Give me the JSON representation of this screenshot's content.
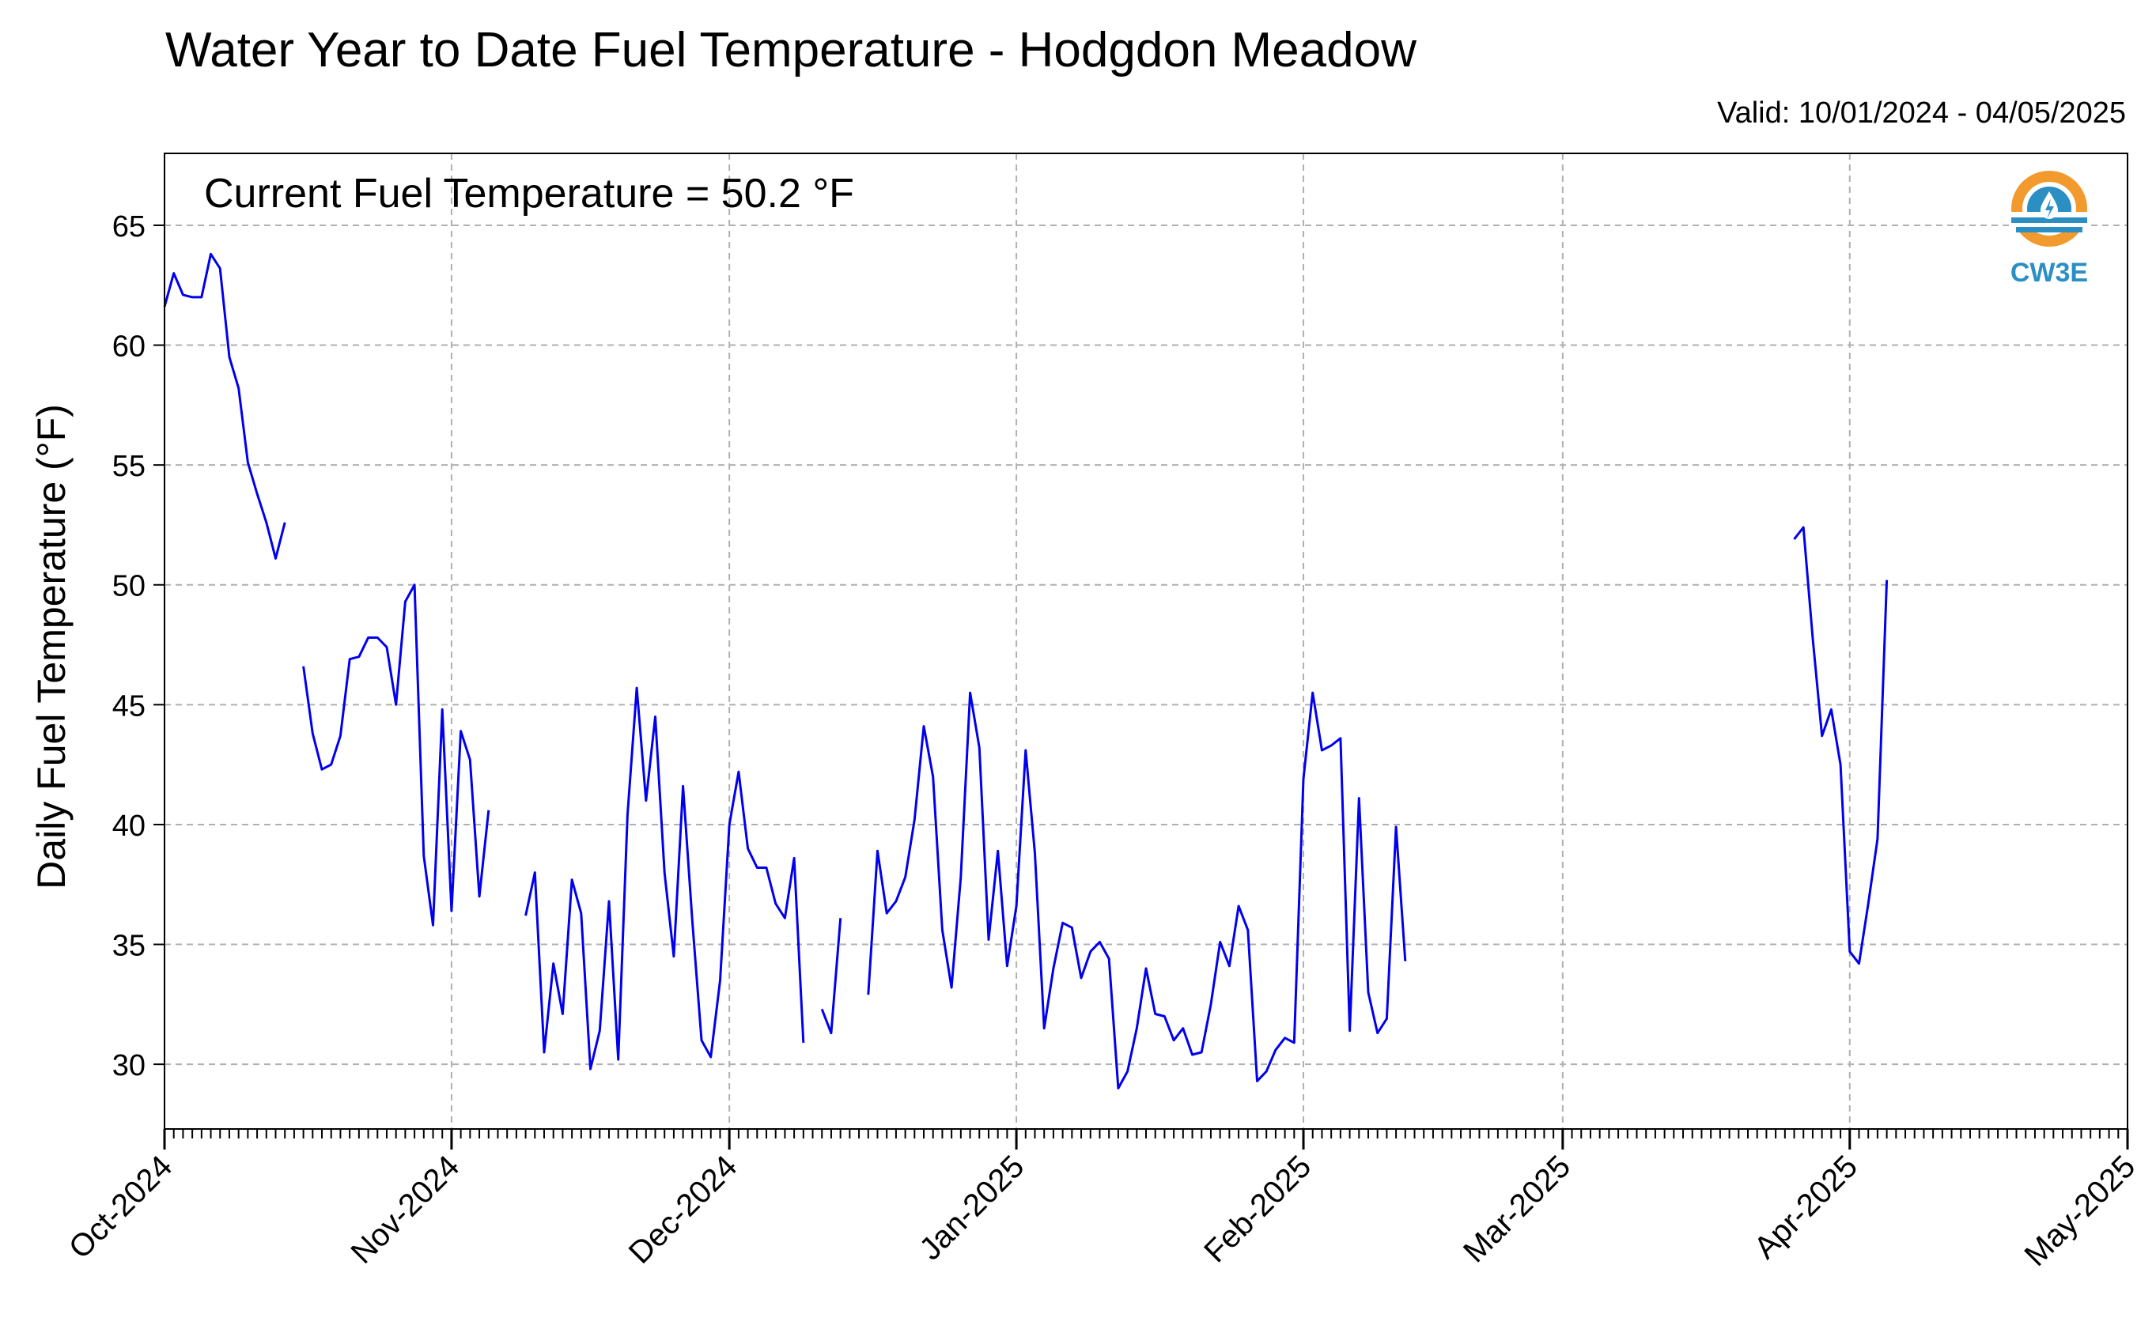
{
  "title": "Water Year to Date Fuel Temperature - Hodgdon Meadow",
  "valid_label": "Valid: 10/01/2024 - 04/05/2025",
  "logo_text": "CW3E",
  "colors": {
    "line": "#0000ee",
    "grid": "#b0b0b0",
    "axes": "#000000",
    "logo_orange": "#f29a2e",
    "logo_blue": "#2b8fc3"
  },
  "chart_data": {
    "type": "line",
    "title": "Water Year to Date Fuel Temperature - Hodgdon Meadow",
    "annotation": "Current Fuel Temperature = 50.2 °F",
    "ylabel": "Daily Fuel Temperature (°F)",
    "xlabel": "",
    "x_range": [
      "2024-10-01",
      "2025-05-01"
    ],
    "ylim": [
      27.3,
      68.0
    ],
    "yticks": [
      30,
      35,
      40,
      45,
      50,
      55,
      60,
      65
    ],
    "xticks": [
      {
        "date": "2024-10-01",
        "label": "Oct-2024"
      },
      {
        "date": "2024-11-01",
        "label": "Nov-2024"
      },
      {
        "date": "2024-12-01",
        "label": "Dec-2024"
      },
      {
        "date": "2025-01-01",
        "label": "Jan-2025"
      },
      {
        "date": "2025-02-01",
        "label": "Feb-2025"
      },
      {
        "date": "2025-03-01",
        "label": "Mar-2025"
      },
      {
        "date": "2025-04-01",
        "label": "Apr-2025"
      },
      {
        "date": "2025-05-01",
        "label": "May-2025"
      }
    ],
    "grid": true,
    "series": [
      {
        "segments": [
          [
            [
              "2024-10-01",
              61.6
            ],
            [
              "2024-10-02",
              63.0
            ],
            [
              "2024-10-03",
              62.1
            ],
            [
              "2024-10-04",
              62.0
            ],
            [
              "2024-10-05",
              62.0
            ],
            [
              "2024-10-06",
              63.8
            ],
            [
              "2024-10-07",
              63.2
            ],
            [
              "2024-10-08",
              59.5
            ],
            [
              "2024-10-09",
              58.2
            ],
            [
              "2024-10-10",
              55.1
            ],
            [
              "2024-10-11",
              53.8
            ],
            [
              "2024-10-12",
              52.6
            ],
            [
              "2024-10-13",
              51.1
            ],
            [
              "2024-10-14",
              52.6
            ]
          ],
          [
            [
              "2024-10-16",
              46.6
            ],
            [
              "2024-10-17",
              43.8
            ],
            [
              "2024-10-18",
              42.3
            ],
            [
              "2024-10-19",
              42.5
            ],
            [
              "2024-10-20",
              43.7
            ],
            [
              "2024-10-21",
              46.9
            ],
            [
              "2024-10-22",
              47.0
            ],
            [
              "2024-10-23",
              47.8
            ],
            [
              "2024-10-24",
              47.8
            ],
            [
              "2024-10-25",
              47.4
            ],
            [
              "2024-10-26",
              45.0
            ],
            [
              "2024-10-27",
              49.3
            ],
            [
              "2024-10-28",
              50.0
            ],
            [
              "2024-10-29",
              38.7
            ],
            [
              "2024-10-30",
              35.8
            ],
            [
              "2024-10-31",
              44.8
            ],
            [
              "2024-11-01",
              36.4
            ],
            [
              "2024-11-02",
              43.9
            ],
            [
              "2024-11-03",
              42.7
            ],
            [
              "2024-11-04",
              37.0
            ],
            [
              "2024-11-05",
              40.6
            ]
          ],
          [
            [
              "2024-11-09",
              36.2
            ],
            [
              "2024-11-10",
              38.0
            ],
            [
              "2024-11-11",
              30.5
            ],
            [
              "2024-11-12",
              34.2
            ],
            [
              "2024-11-13",
              32.1
            ],
            [
              "2024-11-14",
              37.7
            ],
            [
              "2024-11-15",
              36.3
            ],
            [
              "2024-11-16",
              29.8
            ],
            [
              "2024-11-17",
              31.4
            ],
            [
              "2024-11-18",
              36.8
            ],
            [
              "2024-11-19",
              30.2
            ],
            [
              "2024-11-20",
              40.4
            ],
            [
              "2024-11-21",
              45.7
            ],
            [
              "2024-11-22",
              41.0
            ],
            [
              "2024-11-23",
              44.5
            ],
            [
              "2024-11-24",
              38.0
            ],
            [
              "2024-11-25",
              34.5
            ],
            [
              "2024-11-26",
              41.6
            ],
            [
              "2024-11-27",
              36.0
            ],
            [
              "2024-11-28",
              31.0
            ],
            [
              "2024-11-29",
              30.3
            ],
            [
              "2024-11-30",
              33.5
            ],
            [
              "2024-12-01",
              40.0
            ],
            [
              "2024-12-02",
              42.2
            ],
            [
              "2024-12-03",
              39.0
            ],
            [
              "2024-12-04",
              38.2
            ],
            [
              "2024-12-05",
              38.2
            ],
            [
              "2024-12-06",
              36.7
            ],
            [
              "2024-12-07",
              36.1
            ],
            [
              "2024-12-08",
              38.6
            ],
            [
              "2024-12-09",
              30.9
            ]
          ],
          [
            [
              "2024-12-11",
              32.3
            ],
            [
              "2024-12-12",
              31.3
            ],
            [
              "2024-12-13",
              36.1
            ]
          ],
          [
            [
              "2024-12-16",
              32.9
            ],
            [
              "2024-12-17",
              38.9
            ],
            [
              "2024-12-18",
              36.3
            ],
            [
              "2024-12-19",
              36.8
            ],
            [
              "2024-12-20",
              37.8
            ],
            [
              "2024-12-21",
              40.2
            ],
            [
              "2024-12-22",
              44.1
            ],
            [
              "2024-12-23",
              42.0
            ],
            [
              "2024-12-24",
              35.6
            ],
            [
              "2024-12-25",
              33.2
            ],
            [
              "2024-12-26",
              37.8
            ],
            [
              "2024-12-27",
              45.5
            ],
            [
              "2024-12-28",
              43.2
            ],
            [
              "2024-12-29",
              35.2
            ],
            [
              "2024-12-30",
              38.9
            ],
            [
              "2024-12-31",
              34.1
            ],
            [
              "2025-01-01",
              36.6
            ],
            [
              "2025-01-02",
              43.1
            ],
            [
              "2025-01-03",
              38.8
            ],
            [
              "2025-01-04",
              31.5
            ],
            [
              "2025-01-05",
              34.0
            ],
            [
              "2025-01-06",
              35.9
            ],
            [
              "2025-01-07",
              35.7
            ],
            [
              "2025-01-08",
              33.6
            ],
            [
              "2025-01-09",
              34.7
            ],
            [
              "2025-01-10",
              35.1
            ],
            [
              "2025-01-11",
              34.4
            ],
            [
              "2025-01-12",
              29.0
            ],
            [
              "2025-01-13",
              29.7
            ],
            [
              "2025-01-14",
              31.5
            ],
            [
              "2025-01-15",
              34.0
            ],
            [
              "2025-01-16",
              32.1
            ],
            [
              "2025-01-17",
              32.0
            ],
            [
              "2025-01-18",
              31.0
            ],
            [
              "2025-01-19",
              31.5
            ],
            [
              "2025-01-20",
              30.4
            ],
            [
              "2025-01-21",
              30.5
            ],
            [
              "2025-01-22",
              32.5
            ],
            [
              "2025-01-23",
              35.1
            ],
            [
              "2025-01-24",
              34.1
            ],
            [
              "2025-01-25",
              36.6
            ],
            [
              "2025-01-26",
              35.6
            ],
            [
              "2025-01-27",
              29.3
            ],
            [
              "2025-01-28",
              29.7
            ],
            [
              "2025-01-29",
              30.6
            ],
            [
              "2025-01-30",
              31.1
            ],
            [
              "2025-01-31",
              30.9
            ],
            [
              "2025-02-01",
              41.9
            ],
            [
              "2025-02-02",
              45.5
            ],
            [
              "2025-02-03",
              43.1
            ],
            [
              "2025-02-04",
              43.3
            ],
            [
              "2025-02-05",
              43.6
            ],
            [
              "2025-02-06",
              31.4
            ],
            [
              "2025-02-07",
              41.1
            ],
            [
              "2025-02-08",
              33.0
            ],
            [
              "2025-02-09",
              31.3
            ],
            [
              "2025-02-10",
              31.9
            ],
            [
              "2025-02-11",
              39.9
            ],
            [
              "2025-02-12",
              34.3
            ]
          ],
          [
            [
              "2025-03-26",
              51.9
            ],
            [
              "2025-03-27",
              52.4
            ],
            [
              "2025-03-28",
              47.8
            ],
            [
              "2025-03-29",
              43.7
            ],
            [
              "2025-03-30",
              44.8
            ],
            [
              "2025-03-31",
              42.5
            ],
            [
              "2025-04-01",
              34.7
            ],
            [
              "2025-04-02",
              34.2
            ],
            [
              "2025-04-03",
              36.7
            ],
            [
              "2025-04-04",
              39.4
            ],
            [
              "2025-04-05",
              50.2
            ]
          ]
        ]
      }
    ]
  }
}
